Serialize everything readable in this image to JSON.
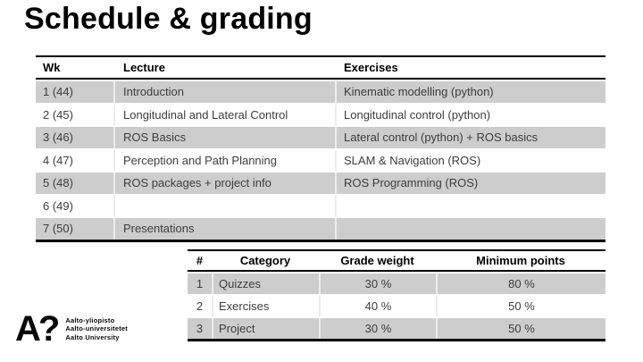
{
  "slide": {
    "title": "Schedule & grading"
  },
  "schedule_table": {
    "columns": [
      "Wk",
      "Lecture",
      "Exercises"
    ],
    "rows": [
      {
        "wk": "1 (44)",
        "lecture": "Introduction",
        "exercises": "Kinematic modelling (python)",
        "shaded": true
      },
      {
        "wk": "2 (45)",
        "lecture": "Longitudinal and Lateral Control",
        "exercises": "Longitudinal control (python)",
        "shaded": false
      },
      {
        "wk": "3 (46)",
        "lecture": "ROS Basics",
        "exercises": "Lateral control (python) + ROS basics",
        "shaded": true
      },
      {
        "wk": "4 (47)",
        "lecture": "Perception and Path Planning",
        "exercises": "SLAM & Navigation (ROS)",
        "shaded": false
      },
      {
        "wk": "5 (48)",
        "lecture": "ROS packages + project info",
        "exercises": "ROS Programming (ROS)",
        "shaded": true
      },
      {
        "wk": "6 (49)",
        "lecture": "",
        "exercises": "",
        "shaded": false
      },
      {
        "wk": "7 (50)",
        "lecture": "Presentations",
        "exercises": "",
        "shaded": true
      }
    ]
  },
  "grading_table": {
    "columns": [
      "#",
      "Category",
      "Grade weight",
      "Minimum points"
    ],
    "rows": [
      {
        "num": "1",
        "category": "Quizzes",
        "grade_weight": "30 %",
        "minimum_points": "80 %",
        "shaded": true
      },
      {
        "num": "2",
        "category": "Exercises",
        "grade_weight": "40 %",
        "minimum_points": "50 %",
        "shaded": false
      },
      {
        "num": "3",
        "category": "Project",
        "grade_weight": "30 %",
        "minimum_points": "50 %",
        "shaded": true
      }
    ]
  },
  "logo": {
    "mark": "A?",
    "lines": [
      "Aalto-yliopisto",
      "Aalto-universitetet",
      "Aalto University"
    ]
  },
  "colors": {
    "row_shaded": "#cdcdcd",
    "border": "#000000",
    "body_text": "#3d3d3d",
    "heading_text": "#000000"
  }
}
